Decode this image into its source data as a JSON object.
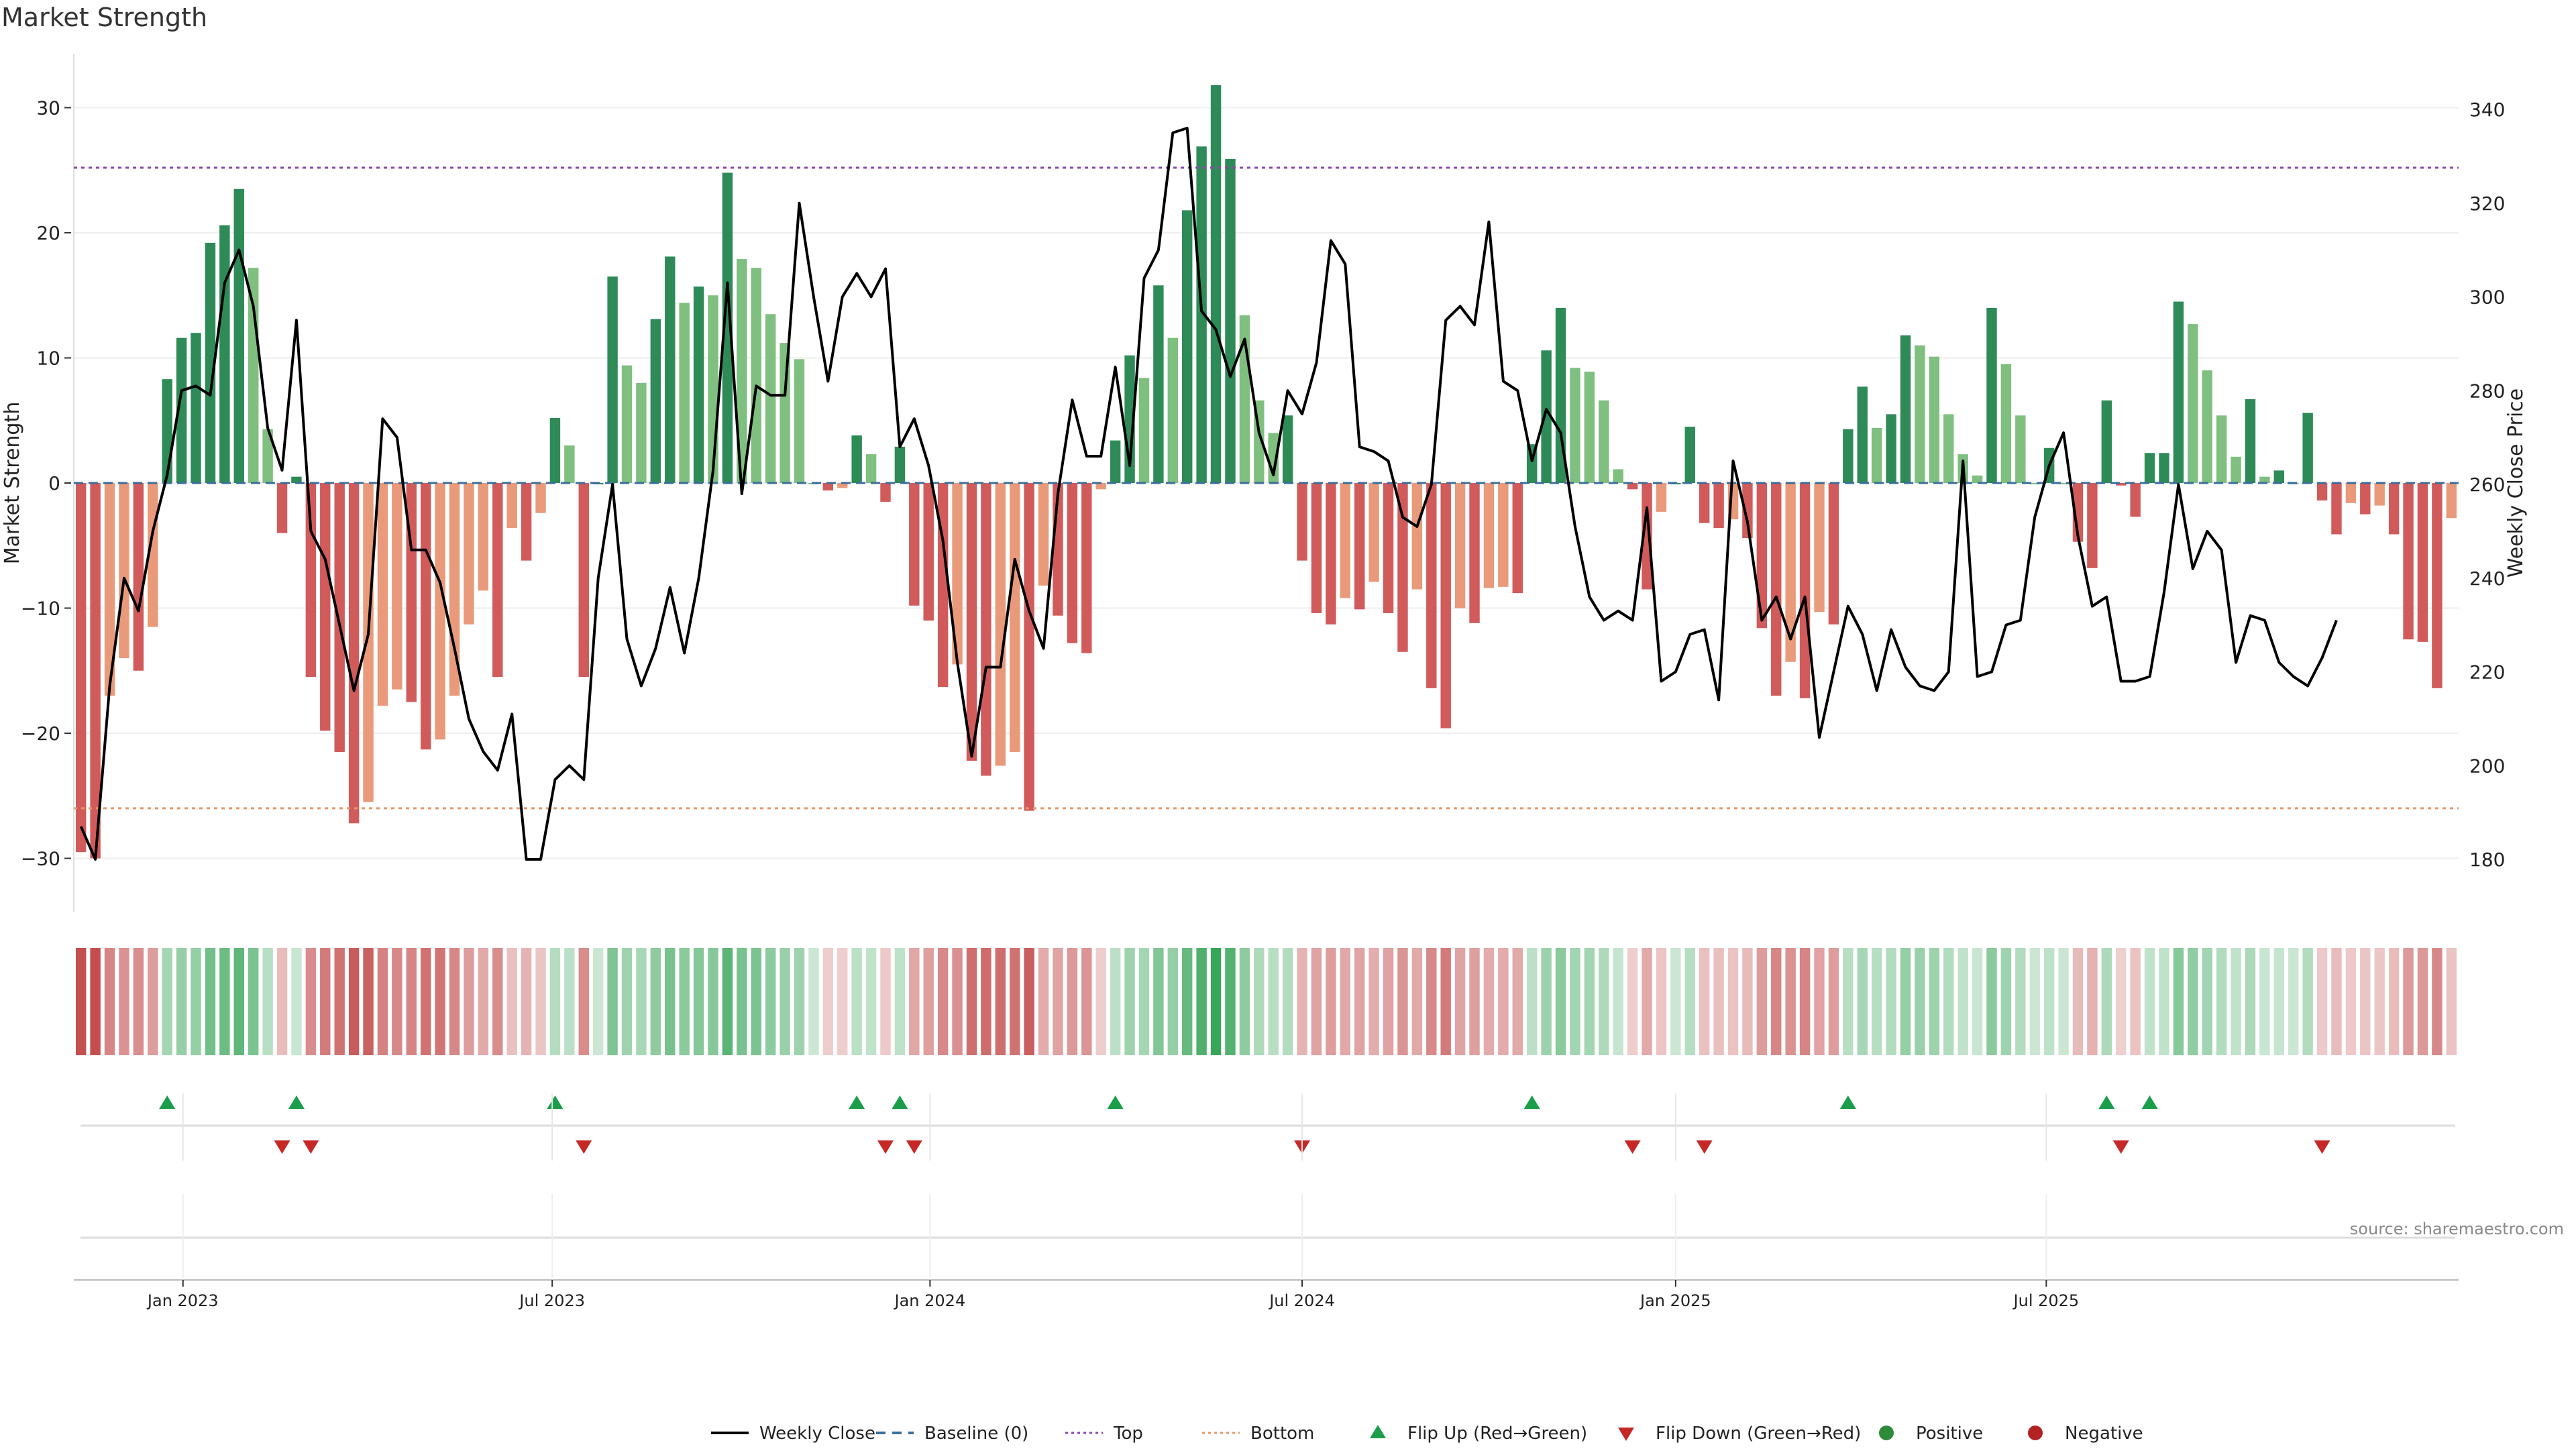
{
  "title": "Market Strength",
  "source_note": "source: sharemaestro.com",
  "chart_data": {
    "type": "bar",
    "title": "Market Strength",
    "ylabel": "Market Strength",
    "ylabel_right": "Weekly Close Price",
    "ylim": [
      -35,
      35
    ],
    "ylim_right": [
      170,
      345
    ],
    "yticks": [
      30,
      20,
      10,
      0,
      -10,
      -20,
      -30
    ],
    "yticks_right": [
      340,
      320,
      300,
      280,
      260,
      240,
      220,
      200,
      180
    ],
    "top_threshold": 25.2,
    "bottom_threshold": -26,
    "x_tick_labels": [
      "Jan 2023",
      "Jul 2023",
      "Jan 2024",
      "Jul 2024",
      "Jan 2025",
      "Jul 2025"
    ],
    "x_tick_index": [
      7.6,
      33.3,
      59.6,
      85.5,
      111.5,
      137.3
    ],
    "strength": [
      -29.5,
      -30,
      -17,
      -14,
      -15,
      -11.5,
      8.3,
      11.6,
      12,
      19.2,
      20.6,
      23.5,
      17.2,
      4.3,
      -4,
      0.5,
      -15.5,
      -19.8,
      -21.5,
      -27.2,
      -25.5,
      -17.8,
      -16.5,
      -17.5,
      -21.3,
      -20.5,
      -17,
      -11.3,
      -8.6,
      -15.5,
      -3.6,
      -6.2,
      -2.4,
      5.2,
      3,
      -15.5,
      0,
      16.5,
      9.4,
      8,
      13.1,
      18.1,
      14.4,
      15.7,
      15,
      24.8,
      17.9,
      17.2,
      13.5,
      11.2,
      9.9,
      0,
      -0.6,
      -0.4,
      3.8,
      2.3,
      -1.5,
      2.9,
      -9.8,
      -11,
      -16.3,
      -14.5,
      -22.2,
      -23.4,
      -22.6,
      -21.5,
      -26.2,
      -8.2,
      -10.6,
      -12.8,
      -13.6,
      -0.5,
      3.4,
      10.2,
      8.4,
      15.8,
      11.6,
      21.8,
      26.9,
      31.8,
      25.9,
      13.4,
      6.6,
      4,
      5.4,
      -6.2,
      -10.4,
      -11.3,
      -9.2,
      -10.1,
      -7.9,
      -10.4,
      -13.5,
      -8.5,
      -16.4,
      -19.6,
      -10,
      -11.2,
      -8.4,
      -8.3,
      -8.8,
      3.1,
      10.6,
      14,
      9.2,
      8.9,
      6.6,
      1.1,
      -0.5,
      -8.5,
      -2.3,
      0,
      4.5,
      -3.2,
      -3.6,
      -2.9,
      -4.4,
      -11.6,
      -17,
      -14.3,
      -17.2,
      -10.3,
      -11.3,
      4.3,
      7.7,
      4.4,
      5.5,
      11.8,
      11,
      10.1,
      5.5,
      2.3,
      0.6,
      14,
      9.5,
      5.4,
      0,
      2.8,
      0,
      -4.7,
      -6.8,
      6.6,
      -0.2,
      -2.7,
      2.4,
      2.4,
      14.5,
      12.7,
      9,
      5.4,
      2.1,
      6.7,
      0.5,
      1,
      0,
      5.6,
      -1.4,
      -4.1,
      -1.6,
      -2.5,
      -1.8,
      -4.1,
      -12.5,
      -12.7,
      -16.4,
      -2.8
    ],
    "weekly_close": [
      187,
      180,
      217,
      240,
      233,
      250,
      262,
      280,
      281,
      279,
      303,
      310,
      298,
      272,
      263,
      295,
      250,
      244,
      230,
      216,
      228,
      274,
      270,
      246,
      246,
      239,
      225,
      210,
      203,
      199,
      211,
      180,
      180,
      197,
      200,
      197,
      240,
      260,
      227,
      217,
      225,
      238,
      224,
      240,
      263,
      303,
      258,
      281,
      279,
      279,
      320,
      300,
      282,
      300,
      305,
      300,
      306,
      268,
      274,
      264,
      248,
      222,
      202,
      221,
      221,
      244,
      233,
      225,
      258,
      278,
      266,
      266,
      285,
      264,
      304,
      310,
      335,
      336,
      297,
      293,
      283,
      291,
      271,
      262,
      280,
      275,
      286,
      312,
      307,
      268,
      267,
      265,
      253,
      251,
      260,
      295,
      298,
      294,
      316,
      282,
      280,
      265,
      276,
      271,
      251,
      236,
      231,
      233,
      231,
      255,
      218,
      220,
      228,
      229,
      214,
      265,
      252,
      231,
      236,
      227,
      236,
      206,
      220,
      234,
      228,
      216,
      229,
      221,
      217,
      216,
      220,
      265,
      219,
      220,
      230,
      231,
      253,
      264,
      271,
      249,
      234,
      236,
      218,
      218,
      219,
      237,
      260,
      242,
      250,
      246,
      222,
      232,
      231,
      222,
      219,
      217,
      223,
      231
    ]
  },
  "flip_up": [
    "Flip Up (Red→Green)"
  ],
  "legend": [
    {
      "label": "Weekly Close",
      "kind": "line",
      "color": "#000000"
    },
    {
      "label": "Baseline (0)",
      "kind": "dash",
      "color": "#3b6e9c"
    },
    {
      "label": "Top",
      "kind": "dot",
      "color": "#8e44ad"
    },
    {
      "label": "Bottom",
      "kind": "dot",
      "color": "#e59866"
    },
    {
      "label": "Flip Up (Red→Green)",
      "kind": "tri-up",
      "color": "#1b9e4a"
    },
    {
      "label": "Flip Down (Green→Red)",
      "kind": "tri-down",
      "color": "#c62828"
    },
    {
      "label": "Positive",
      "kind": "circle",
      "color": "#2e8b3a"
    },
    {
      "label": "Negative",
      "kind": "circle",
      "color": "#b22222"
    }
  ],
  "colors": {
    "pos_strong": "#2e8b57",
    "pos_weak": "#7fbf7f",
    "neg_strong": "#d15b5b",
    "neg_weak": "#e99a7a",
    "flip_up": "#1b9e4a",
    "flip_down": "#c62828"
  }
}
